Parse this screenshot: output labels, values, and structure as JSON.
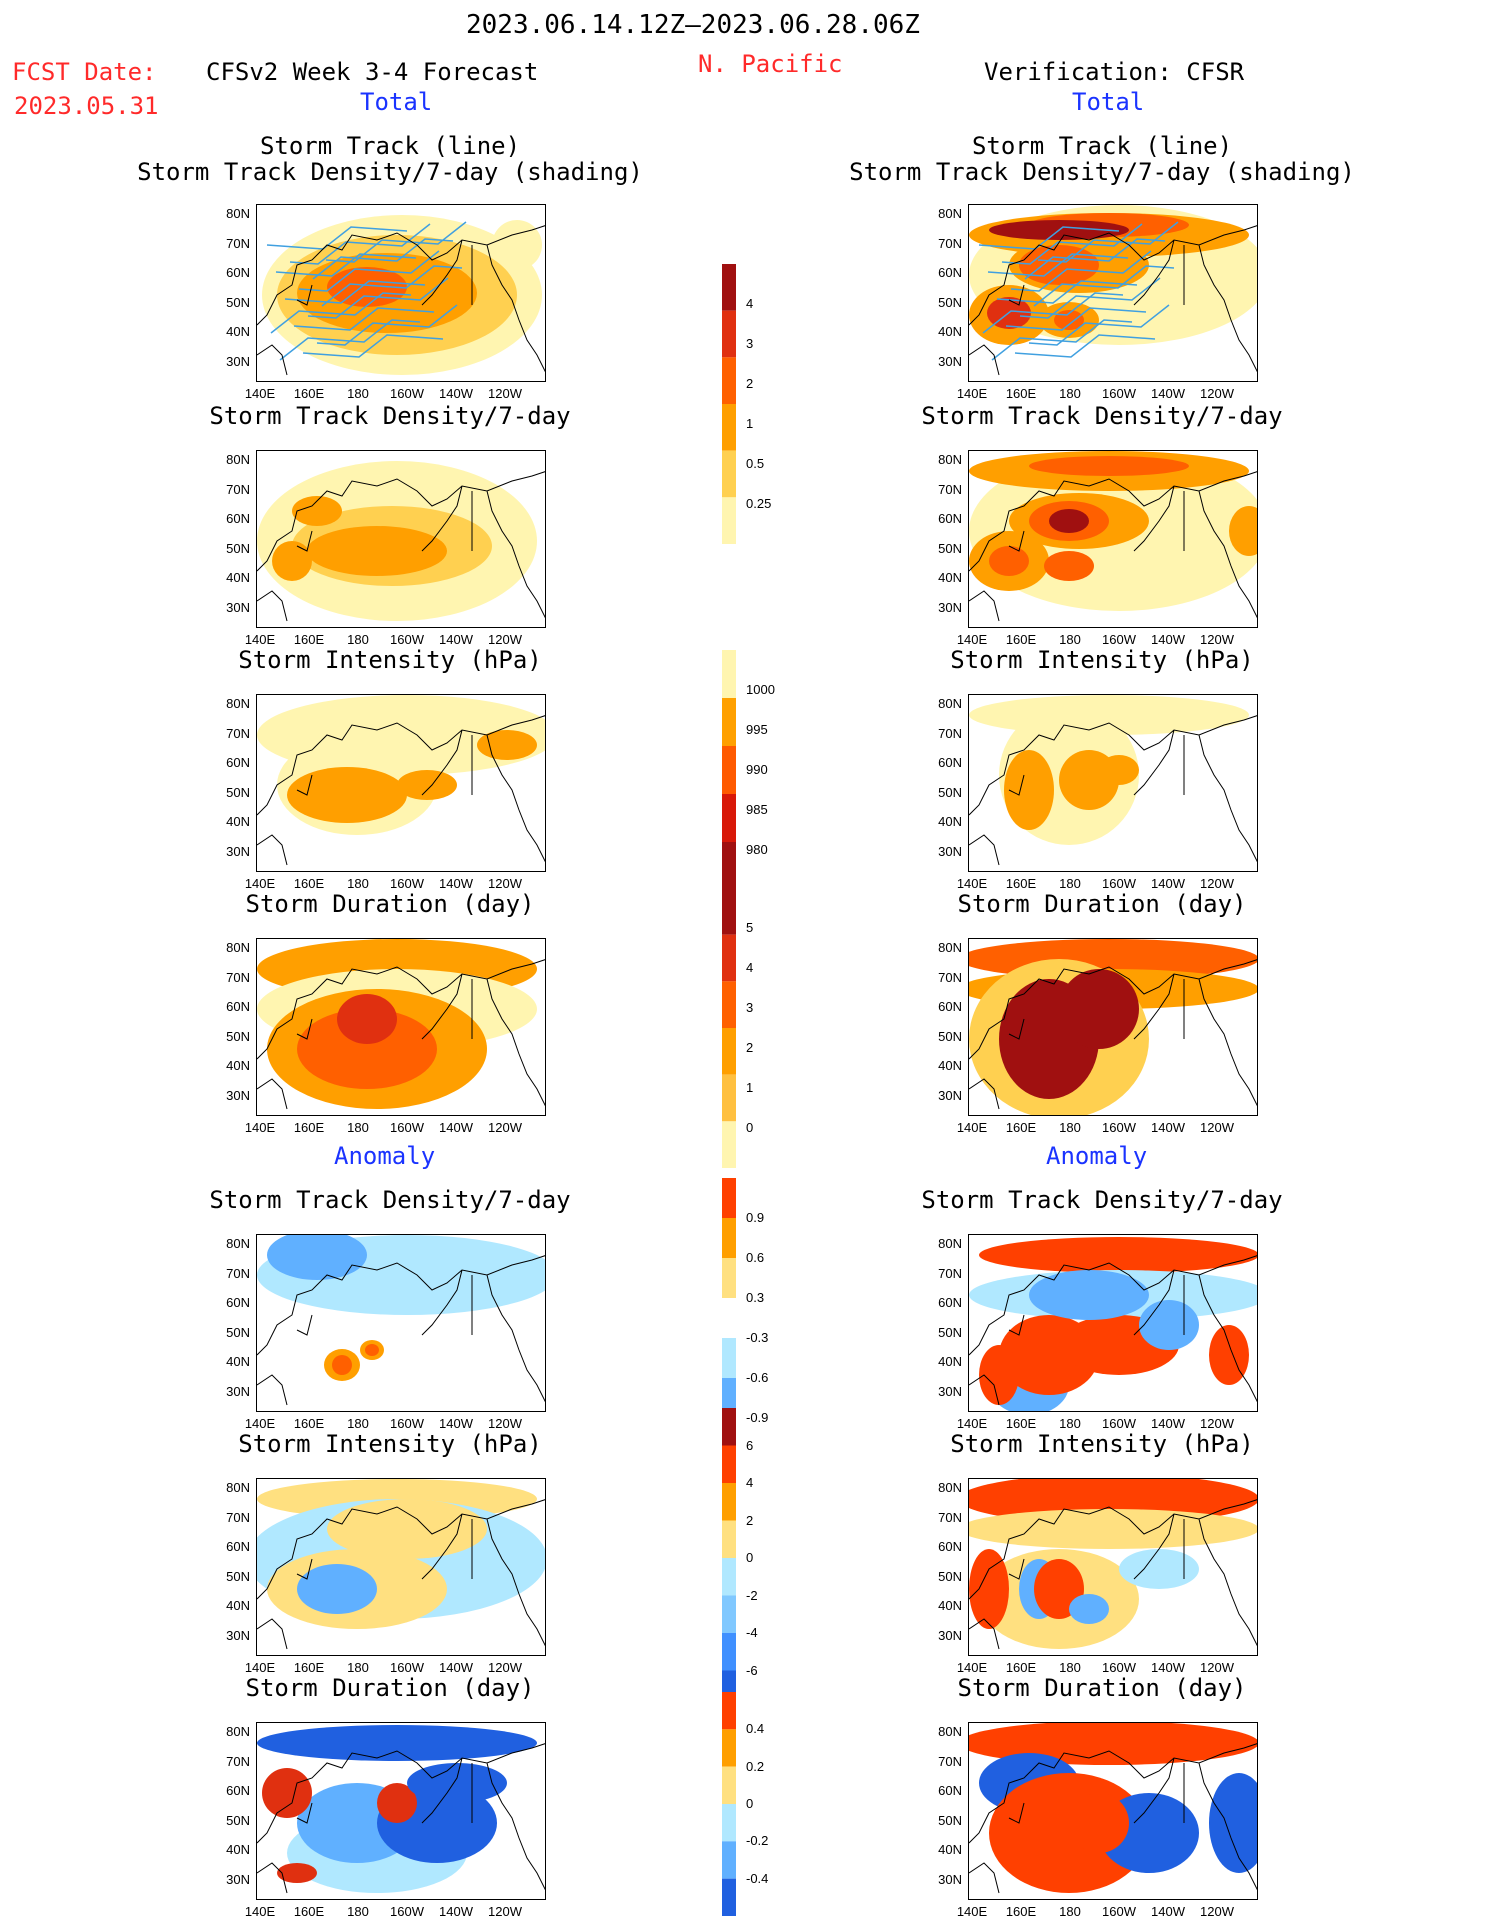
{
  "header": {
    "period": "2023.06.14.12Z–2023.06.28.06Z",
    "fcst_label": "FCST Date:",
    "fcst_date": "2023.05.31",
    "model": "CFSv2 Week 3-4 Forecast",
    "region": "N. Pacific",
    "verification": "Verification: CFSR",
    "total_left": "Total",
    "total_right": "Total",
    "anomaly_left": "Anomaly",
    "anomaly_right": "Anomaly"
  },
  "axes": {
    "lat_labels": [
      "80N",
      "70N",
      "60N",
      "50N",
      "40N",
      "30N"
    ],
    "lon_labels": [
      "140E",
      "160E",
      "180",
      "160W",
      "140W",
      "120W"
    ]
  },
  "panels": {
    "total_track": {
      "title1": "Storm Track (line)",
      "title2": "Storm Track Density/7-day (shading)"
    },
    "total_density": {
      "title": "Storm Track Density/7-day"
    },
    "total_intensity": {
      "title": "Storm Intensity (hPa)"
    },
    "total_duration": {
      "title": "Storm Duration (day)"
    },
    "anom_density": {
      "title": "Storm Track Density/7-day"
    },
    "anom_intensity": {
      "title": "Storm Intensity (hPa)"
    },
    "anom_duration": {
      "title": "Storm Duration (day)"
    }
  },
  "colorbars": {
    "density_total": {
      "labels": [
        "4",
        "3",
        "2",
        "1",
        "0.5",
        "0.25"
      ],
      "colors": [
        "#a01010",
        "#e03010",
        "#ff6000",
        "#ff9f00",
        "#ffd050",
        "#fff5b0"
      ]
    },
    "intensity_total": {
      "labels": [
        "1000",
        "995",
        "990",
        "985",
        "980"
      ],
      "colors": [
        "#fff5b0",
        "#ffa000",
        "#ff5a00",
        "#d81808",
        "#a01010"
      ]
    },
    "duration_total": {
      "labels": [
        "5",
        "4",
        "3",
        "2",
        "1",
        "0"
      ],
      "colors": [
        "#a01010",
        "#e03010",
        "#ff6000",
        "#ff9f00",
        "#ffc040",
        "#fff5b0"
      ]
    },
    "density_anom": {
      "labels": [
        "0.9",
        "0.6",
        "0.3",
        "-0.3",
        "-0.6",
        "-0.9"
      ],
      "colors": [
        "#ff4000",
        "#ff9f00",
        "#ffe080",
        "#ffffff",
        "#b0e8ff",
        "#60b0ff",
        "#2060e0"
      ]
    },
    "intensity_anom": {
      "labels": [
        "6",
        "4",
        "2",
        "0",
        "-2",
        "-4",
        "-6"
      ],
      "colors": [
        "#a01010",
        "#ff4000",
        "#ff9f00",
        "#ffe080",
        "#b0e8ff",
        "#80c8ff",
        "#4090ff",
        "#2060e0"
      ]
    },
    "duration_anom": {
      "labels": [
        "0.4",
        "0.2",
        "0",
        "-0.2",
        "-0.4"
      ],
      "colors": [
        "#ff4000",
        "#ff9f00",
        "#ffe080",
        "#b0e8ff",
        "#60b0ff",
        "#2060e0"
      ]
    }
  }
}
